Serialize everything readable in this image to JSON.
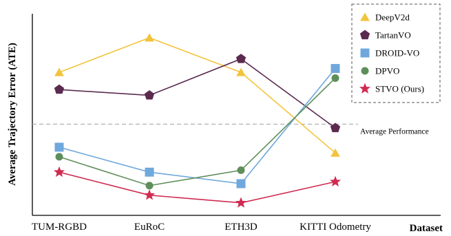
{
  "chart_data": {
    "type": "line",
    "categories": [
      "TUM-RGBD",
      "EuRoC",
      "ETH3D",
      "KITTI Odometry"
    ],
    "xlabel": "Dataset",
    "ylabel": "Average Trajectory Error (ATE)",
    "ylim": [
      0,
      100
    ],
    "y_ticks_shown": false,
    "grid": false,
    "legend_position": "top-right",
    "reference_line": {
      "label": "Average Performance",
      "value": 45,
      "style": "dashed",
      "color": "#aaaaaa"
    },
    "series": [
      {
        "name": "DeepV2d",
        "marker": "triangle",
        "color": "#F2C43C",
        "values": [
          72,
          90,
          72,
          30
        ]
      },
      {
        "name": "TartanVO",
        "marker": "pentagon",
        "color": "#5B2A4F",
        "values": [
          63,
          60,
          79,
          43
        ]
      },
      {
        "name": "DROID-VO",
        "marker": "square",
        "color": "#6FA8DC",
        "values": [
          33,
          20,
          14,
          74
        ]
      },
      {
        "name": "DPVO",
        "marker": "circle",
        "color": "#5E8E5A",
        "values": [
          28,
          13,
          21,
          69
        ]
      },
      {
        "name": "STVO (Ours)",
        "marker": "star",
        "color": "#D02A50",
        "values": [
          20,
          8,
          4,
          15
        ]
      }
    ]
  }
}
